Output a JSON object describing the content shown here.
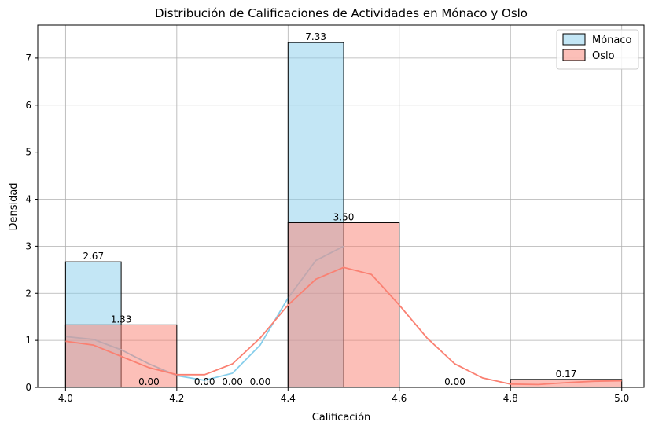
{
  "chart_data": {
    "type": "bar",
    "title": "Distribución de Calificaciones de Actividades en Mónaco y Oslo",
    "xlabel": "Calificación",
    "ylabel": "Densidad",
    "xlim": [
      3.95,
      5.04
    ],
    "ylim": [
      0,
      7.7
    ],
    "x_ticks": [
      "4.0",
      "4.2",
      "4.4",
      "4.6",
      "4.8",
      "5.0"
    ],
    "y_ticks": [
      "0",
      "1",
      "2",
      "3",
      "4",
      "5",
      "6",
      "7"
    ],
    "grid": true,
    "legend_position": "top-right",
    "series": [
      {
        "name": "Mónaco",
        "color": "#87ceeb",
        "bins": [
          {
            "x0": 4.0,
            "x1": 4.1,
            "value": 2.67,
            "label": "2.67"
          },
          {
            "x0": 4.4,
            "x1": 4.5,
            "value": 7.33,
            "label": "7.33"
          }
        ],
        "kde": [
          [
            4.0,
            1.08
          ],
          [
            4.05,
            1.02
          ],
          [
            4.1,
            0.8
          ],
          [
            4.15,
            0.5
          ],
          [
            4.2,
            0.25
          ],
          [
            4.25,
            0.15
          ],
          [
            4.3,
            0.3
          ],
          [
            4.35,
            0.9
          ],
          [
            4.4,
            1.9
          ],
          [
            4.45,
            2.7
          ],
          [
            4.5,
            3.0
          ]
        ]
      },
      {
        "name": "Oslo",
        "color": "#fa8072",
        "bins": [
          {
            "x0": 4.0,
            "x1": 4.2,
            "value": 1.33,
            "label": "1.33"
          },
          {
            "x0": 4.2,
            "x1": 4.4,
            "value": 0.0,
            "label": "0.00"
          },
          {
            "x0": 4.4,
            "x1": 4.6,
            "value": 3.5,
            "label": "3.50"
          },
          {
            "x0": 4.6,
            "x1": 4.8,
            "value": 0.0,
            "label": "0.00"
          },
          {
            "x0": 4.8,
            "x1": 5.0,
            "value": 0.17,
            "label": "0.17"
          }
        ],
        "kde": [
          [
            4.0,
            0.98
          ],
          [
            4.05,
            0.9
          ],
          [
            4.1,
            0.66
          ],
          [
            4.15,
            0.42
          ],
          [
            4.2,
            0.27
          ],
          [
            4.25,
            0.27
          ],
          [
            4.3,
            0.5
          ],
          [
            4.35,
            1.05
          ],
          [
            4.4,
            1.75
          ],
          [
            4.45,
            2.3
          ],
          [
            4.5,
            2.55
          ],
          [
            4.55,
            2.4
          ],
          [
            4.6,
            1.75
          ],
          [
            4.65,
            1.05
          ],
          [
            4.7,
            0.5
          ],
          [
            4.75,
            0.2
          ],
          [
            4.8,
            0.07
          ],
          [
            4.85,
            0.06
          ],
          [
            4.9,
            0.1
          ],
          [
            4.95,
            0.13
          ],
          [
            5.0,
            0.14
          ]
        ]
      }
    ],
    "extra_labels": [
      {
        "x": 4.15,
        "text": "0.00"
      },
      {
        "x": 4.25,
        "text": "0.00"
      },
      {
        "x": 4.35,
        "text": "0.00"
      }
    ]
  }
}
